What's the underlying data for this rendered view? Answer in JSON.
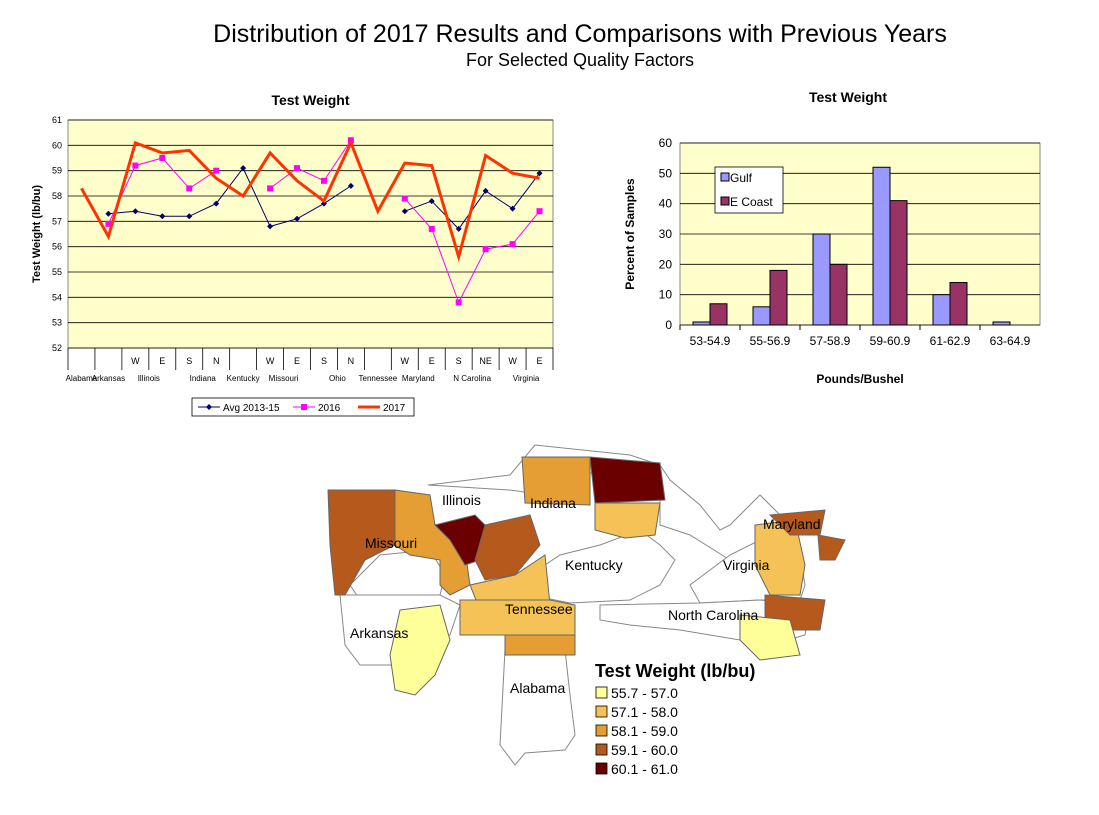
{
  "page": {
    "title": "Distribution of 2017 Results and Comparisons with Previous Years",
    "subtitle": "For Selected Quality Factors"
  },
  "colors": {
    "plot_bg": "#FFFFCC",
    "avg_line": "#000066",
    "line_2016": "#FF00FF",
    "line_2017": "#FF3300",
    "gulf_bar": "#9999FF",
    "ecoast_bar": "#993366"
  },
  "chart_data": [
    {
      "type": "line",
      "title": "Test Weight",
      "ylabel": "Test Weight (lb/bu)",
      "ylim": [
        52,
        61
      ],
      "yticks": [
        "52",
        "53",
        "54",
        "55",
        "56",
        "57",
        "58",
        "59",
        "60",
        "61"
      ],
      "grid": true,
      "legend_position": "bottom",
      "categories": [
        "Alabama",
        "Arkansas",
        "Illinois W",
        "Illinois E",
        "Indiana S",
        "Indiana N",
        "Kentucky",
        "Missouri W",
        "Missouri E",
        "Ohio S",
        "Ohio N",
        "Tennessee",
        "Maryland W",
        "Maryland E",
        "N Carolina S",
        "N Carolina NE",
        "Virginia W",
        "Virginia E"
      ],
      "sub_labels": [
        "",
        "",
        "W",
        "E",
        "S",
        "N",
        "",
        "W",
        "E",
        "S",
        "N",
        "",
        "W",
        "E",
        "S",
        "NE",
        "W",
        "E"
      ],
      "state_labels": [
        "Alabama",
        "Arkansas",
        "Illinois",
        "Indiana",
        "Kentucky",
        "Missouri",
        "Ohio",
        "Tennessee",
        "Maryland",
        "N Carolina",
        "Virginia"
      ],
      "series": [
        {
          "name": "Avg 2013-15",
          "values": [
            null,
            57.3,
            57.4,
            57.2,
            57.2,
            57.7,
            59.1,
            56.8,
            57.1,
            57.7,
            58.4,
            null,
            57.4,
            57.8,
            56.7,
            58.2,
            57.5,
            58.9
          ]
        },
        {
          "name": "2016",
          "values": [
            null,
            56.9,
            59.2,
            59.5,
            58.3,
            59.0,
            null,
            58.3,
            59.1,
            58.6,
            60.2,
            null,
            57.9,
            56.7,
            53.8,
            55.9,
            56.1,
            57.4
          ]
        },
        {
          "name": "2017",
          "values": [
            58.3,
            56.4,
            60.1,
            59.7,
            59.8,
            58.7,
            58.0,
            59.7,
            58.6,
            57.8,
            60.1,
            57.4,
            59.3,
            59.2,
            55.6,
            59.6,
            58.9,
            58.7
          ]
        }
      ]
    },
    {
      "type": "bar",
      "title": "Test Weight",
      "xlabel": "Pounds/Bushel",
      "ylabel": "Percent of Samples",
      "ylim": [
        0,
        60
      ],
      "yticks": [
        "0",
        "10",
        "20",
        "30",
        "40",
        "50",
        "60"
      ],
      "grid": true,
      "legend_position": "top-left",
      "categories": [
        "53-54.9",
        "55-56.9",
        "57-58.9",
        "59-60.9",
        "61-62.9",
        "63-64.9"
      ],
      "series": [
        {
          "name": "Gulf",
          "values": [
            1,
            6,
            30,
            52,
            10,
            1
          ]
        },
        {
          "name": "E Coast",
          "values": [
            7,
            18,
            20,
            41,
            14,
            0
          ]
        }
      ]
    }
  ],
  "map": {
    "legend_title": "Test Weight (lb/bu)",
    "legend_items": [
      {
        "label": "55.7 - 57.0",
        "color": "#FFFF99"
      },
      {
        "label": "57.1 - 58.0",
        "color": "#F5C257"
      },
      {
        "label": "58.1 - 59.0",
        "color": "#E49E33"
      },
      {
        "label": "59.1 - 60.0",
        "color": "#B5591C"
      },
      {
        "label": "60.1 - 61.0",
        "color": "#6B0000"
      }
    ],
    "state_labels": [
      "Illinois",
      "Indiana",
      "Missouri",
      "Kentucky",
      "Virginia",
      "Maryland",
      "Arkansas",
      "Tennessee",
      "North Carolina",
      "Alabama"
    ]
  }
}
